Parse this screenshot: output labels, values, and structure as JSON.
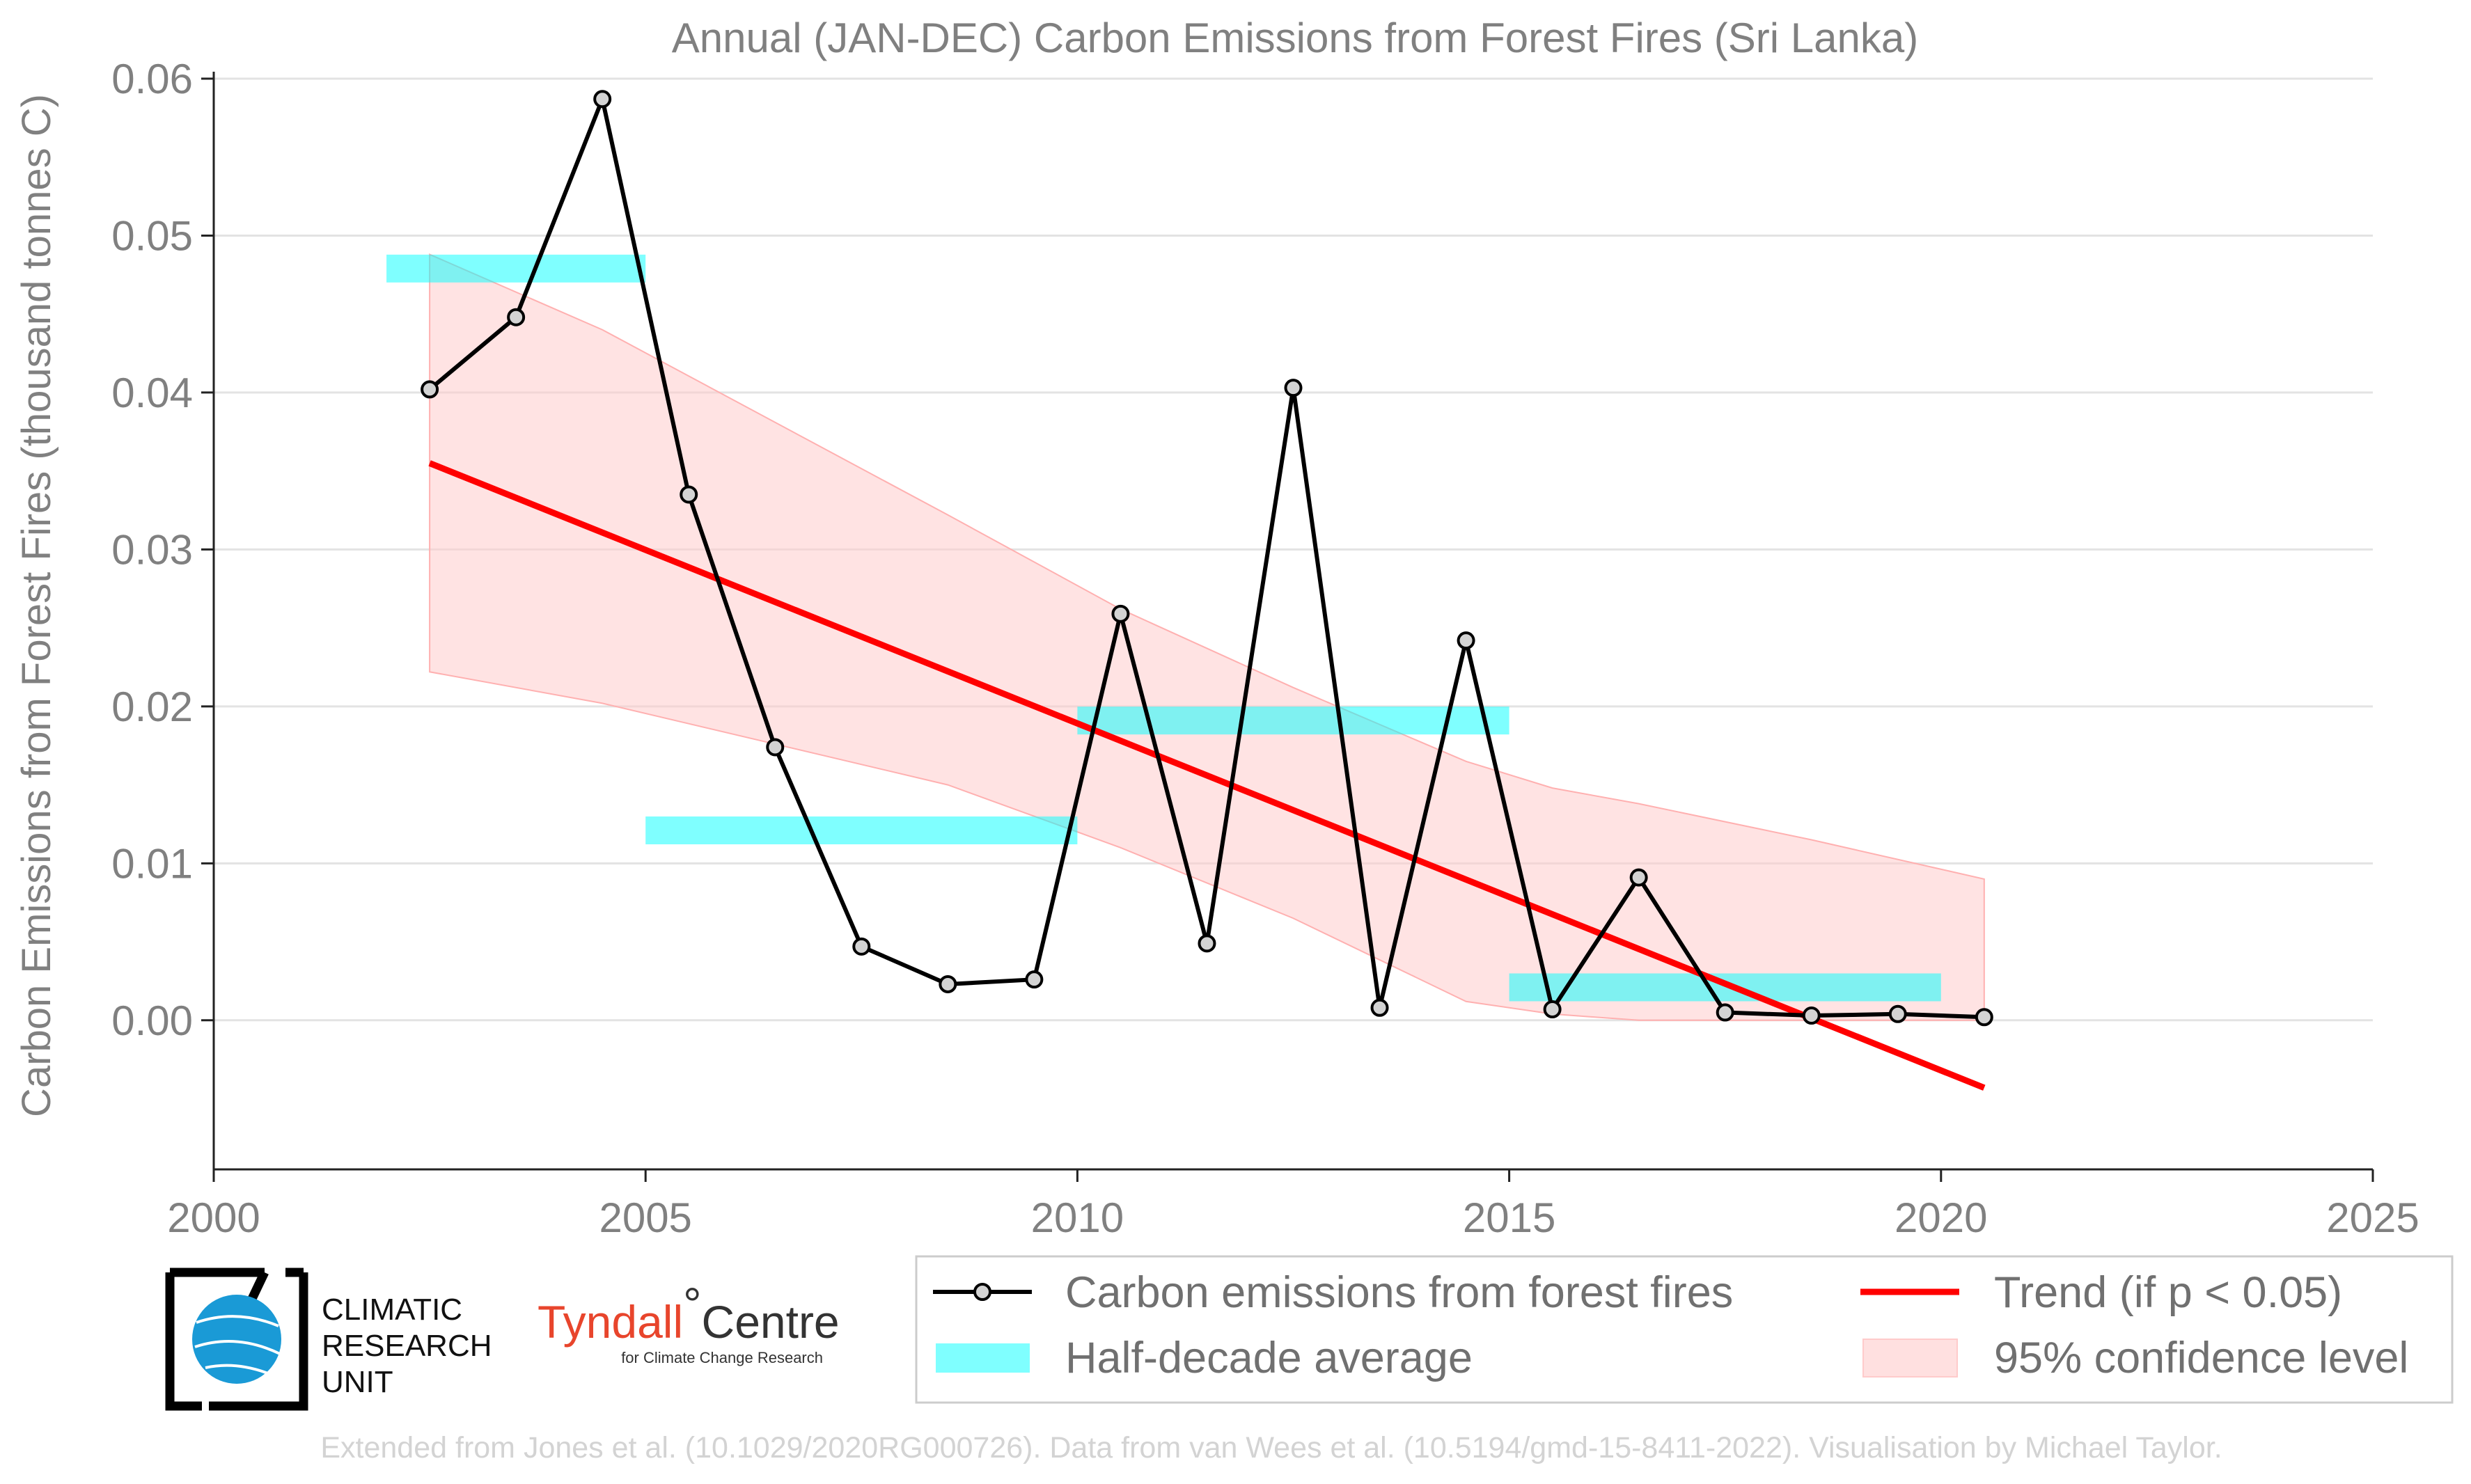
{
  "chart_data": {
    "type": "line",
    "title": "Annual (JAN-DEC) Carbon Emissions from Forest Fires (Sri Lanka)",
    "xlabel": "",
    "ylabel": "Carbon Emissions from Forest Fires (thousand tonnes C)",
    "xlim": [
      2000,
      2025
    ],
    "ylim": [
      -0.0095,
      0.06
    ],
    "x_ticks": [
      "2000",
      "2005",
      "2010",
      "2015",
      "2020",
      "2025"
    ],
    "y_ticks": [
      "0.00",
      "0.01",
      "0.02",
      "0.03",
      "0.04",
      "0.05",
      "0.06"
    ],
    "grid": "horizontal",
    "legend_position": "bottom-right",
    "series": [
      {
        "name": "Carbon emissions from forest fires",
        "color": "#000000",
        "marker_fill": "#d3d3d3",
        "x": [
          2002.5,
          2003.5,
          2004.5,
          2005.5,
          2006.5,
          2007.5,
          2008.5,
          2009.5,
          2010.5,
          2011.5,
          2012.5,
          2013.5,
          2014.5,
          2015.5,
          2016.5,
          2017.5,
          2018.5,
          2019.5,
          2020.5
        ],
        "y": [
          0.0402,
          0.0448,
          0.0587,
          0.0335,
          0.0174,
          0.0047,
          0.0023,
          0.0026,
          0.0259,
          0.0049,
          0.0403,
          0.0008,
          0.0242,
          0.0007,
          0.0091,
          0.0005,
          0.0003,
          0.0004,
          0.0002
        ]
      }
    ],
    "half_decade_average": {
      "name": "Half-decade average",
      "color": "#00ffff",
      "segments": [
        {
          "x": [
            2002,
            2005
          ],
          "y": 0.0479
        },
        {
          "x": [
            2005,
            2010
          ],
          "y": 0.0121
        },
        {
          "x": [
            2010,
            2015
          ],
          "y": 0.0191
        },
        {
          "x": [
            2015,
            2020
          ],
          "y": 0.0021
        }
      ]
    },
    "trend": {
      "name": "Trend (if p < 0.05)",
      "color": "#ff0000",
      "x": [
        2002.5,
        2020.5
      ],
      "y": [
        0.0355,
        -0.0043
      ]
    },
    "confidence_band": {
      "name": "95% confidence level",
      "color": "#ffcccc",
      "x": [
        2002.5,
        2004.5,
        2008.5,
        2010.5,
        2012.5,
        2014.5,
        2015.5,
        2016.5,
        2018.5,
        2020.5
      ],
      "upper": [
        0.0488,
        0.044,
        0.0322,
        0.0262,
        0.0212,
        0.0165,
        0.0148,
        0.0138,
        0.0115,
        0.009
      ],
      "lower": [
        0.0222,
        0.0202,
        0.015,
        0.011,
        0.0065,
        0.0012,
        0.0004,
        0.0,
        0.0,
        0.0
      ]
    }
  },
  "logos": {
    "cru_lines": [
      "CLIMATIC",
      "RESEARCH",
      "UNIT"
    ],
    "tyndall_name_a": "Tyndall",
    "tyndall_degree": "°",
    "tyndall_name_b": "Centre",
    "tyndall_sub": "for Climate Change Research"
  },
  "credit": "Extended from Jones et al. (10.1029/2020RG000726). Data from van Wees et al. (10.5194/gmd-15-8411-2022). Visualisation by Michael Taylor."
}
